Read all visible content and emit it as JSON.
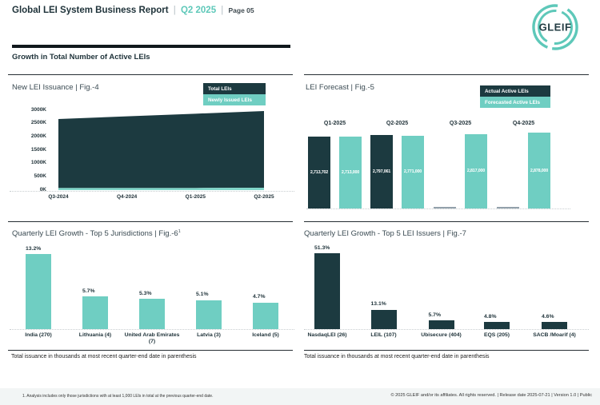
{
  "page": {
    "header": {
      "title": "Global LEI System Business Report",
      "separator": "|",
      "period": "Q2 2025",
      "page_label": "Page 05",
      "logo_text": "GLEIF"
    },
    "section_title": "Growth in Total Number of Active LEIs",
    "notes": {
      "left": "Total issuance in thousands at most recent quarter-end date in parenthesis",
      "right": "Total issuance in thousands at most recent quarter-end date in parenthesis"
    },
    "footer": {
      "footnote": "1. Analysis includes only those jurisdictions with at least 1,000 LEIs in total at the previous quarter-end date.",
      "copyright": "© 2025 GLEIF and/or its affiliates. All rights reserved. | Release date 2025-07-21 | Version 1.0 | Public"
    },
    "colors": {
      "dark": "#1C3A40",
      "teal": "#6FCEC2",
      "teal_strip": "#7FD6C9",
      "accent": "#5EC8B9",
      "no_data": "#93A1AB"
    }
  },
  "chart_data": [
    {
      "id": "fig4",
      "type": "area",
      "title": "New LEI Issuance | Fig.-4",
      "legend": [
        {
          "label": "Total LEIs",
          "color": "#1C3A40"
        },
        {
          "label": "Newly Issued LEIs",
          "color": "#6FCEC2"
        }
      ],
      "x": [
        "Q3-2024",
        "Q4-2024",
        "Q1-2025",
        "Q2-2025"
      ],
      "y_ticks": [
        "3000K",
        "2500K",
        "2000K",
        "1500K",
        "1000K",
        "500K",
        "0K"
      ],
      "ylim_thousands": [
        0,
        3000
      ],
      "series": [
        {
          "name": "Total LEIs",
          "values_thousands": [
            2670,
            2770,
            2870,
            2970
          ]
        },
        {
          "name": "Newly Issued LEIs",
          "values_thousands": [
            80,
            80,
            80,
            90
          ]
        }
      ],
      "legend_position": "top-right",
      "grid": false
    },
    {
      "id": "fig5",
      "type": "bar",
      "title": "LEI Forecast | Fig.-5",
      "legend": [
        {
          "label": "Actual Active LEIs",
          "color": "#1C3A40"
        },
        {
          "label": "Forecasted Active LEIs",
          "color": "#6FCEC2"
        }
      ],
      "categories": [
        "Q1-2025",
        "Q2-2025",
        "Q3-2025",
        "Q4-2025"
      ],
      "series": [
        {
          "name": "Actual Active LEIs",
          "values": [
            2713702,
            2797061,
            null,
            null
          ],
          "labels": [
            "2,713,702",
            "2,797,061",
            "",
            ""
          ]
        },
        {
          "name": "Forecasted Active LEIs",
          "values": [
            2713000,
            2771000,
            2817000,
            2878000
          ],
          "labels": [
            "2,713,000",
            "2,771,000",
            "2,817,000",
            "2,878,000"
          ]
        }
      ],
      "legend_position": "top-right",
      "grid": false
    },
    {
      "id": "fig6",
      "type": "bar",
      "title": "Quarterly LEI Growth - Top 5 Jurisdictions | Fig.-6",
      "title_superscript": "1",
      "categories": [
        "India (270)",
        "Lithuania (4)",
        "United Arab Emirates (7)",
        "Latvia (3)",
        "Iceland (5)"
      ],
      "values_percent": [
        13.2,
        5.7,
        5.3,
        5.1,
        4.7
      ],
      "labels": [
        "13.2%",
        "5.7%",
        "5.3%",
        "5.1%",
        "4.7%"
      ],
      "grid": false
    },
    {
      "id": "fig7",
      "type": "bar",
      "title": "Quarterly LEI Growth - Top 5 LEI Issuers | Fig.-7",
      "categories": [
        "NasdaqLEI (26)",
        "LEIL (107)",
        "Ubisecure (404)",
        "EQS (205)",
        "SACB /Moarif (4)"
      ],
      "values_percent": [
        51.3,
        13.1,
        5.7,
        4.8,
        4.6
      ],
      "labels": [
        "51.3%",
        "13.1%",
        "5.7%",
        "4.8%",
        "4.6%"
      ],
      "grid": false
    }
  ]
}
